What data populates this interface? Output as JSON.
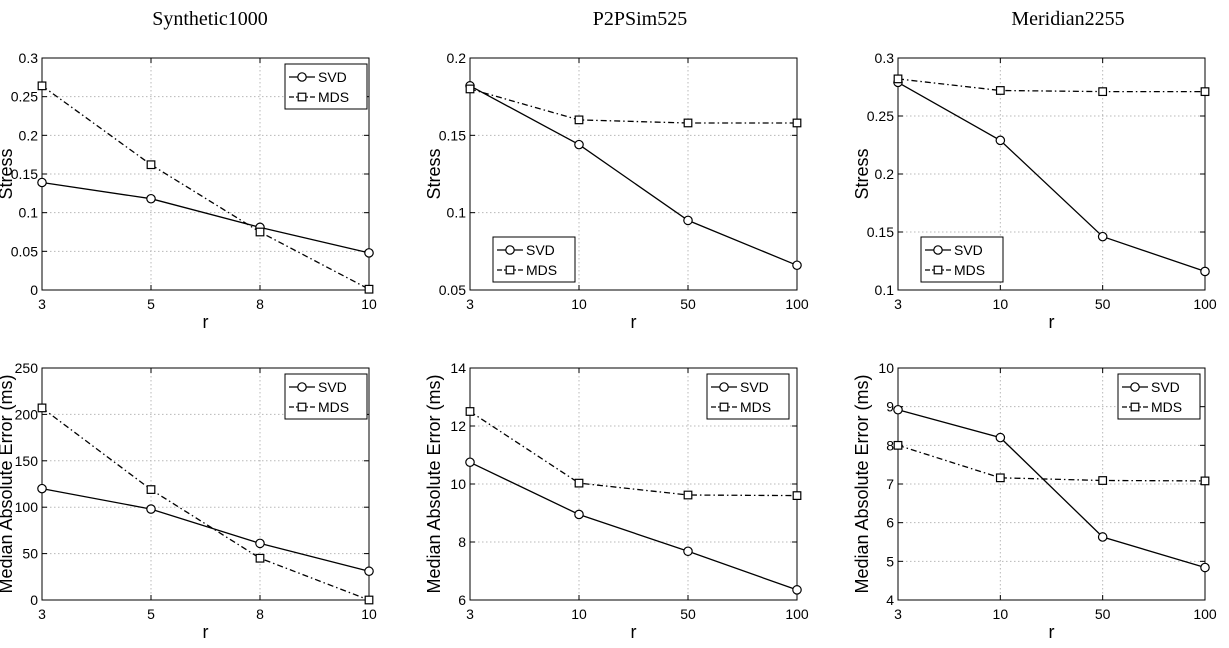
{
  "column_titles": [
    "Synthetic1000",
    "P2PSim525",
    "Meridian2255"
  ],
  "colors": {
    "line": "#000000",
    "grid": "#b8b8b8",
    "background": "#ffffff"
  },
  "chart_data": [
    {
      "type": "line",
      "title": "Synthetic1000",
      "xlabel": "r",
      "ylabel": "Stress",
      "x": [
        3,
        5,
        8,
        10
      ],
      "xticks": [
        "3",
        "5",
        "8",
        "10"
      ],
      "ylim": [
        0,
        0.3
      ],
      "yticks": [
        "0",
        "0.05",
        "0.1",
        "0.15",
        "0.2",
        "0.25",
        "0.3"
      ],
      "grid": true,
      "legend": "top-right",
      "series": [
        {
          "name": "SVD",
          "marker": "circle",
          "style": "solid",
          "values": [
            0.139,
            0.118,
            0.081,
            0.048
          ]
        },
        {
          "name": "MDS",
          "marker": "square",
          "style": "dashdot",
          "values": [
            0.264,
            0.162,
            0.075,
            0.001
          ]
        }
      ]
    },
    {
      "type": "line",
      "title": "P2PSim525",
      "xlabel": "r",
      "ylabel": "Stress",
      "x": [
        3,
        10,
        50,
        100
      ],
      "xticks": [
        "3",
        "10",
        "50",
        "100"
      ],
      "ylim": [
        0.05,
        0.2
      ],
      "yticks": [
        "0.05",
        "0.1",
        "0.15",
        "0.2"
      ],
      "grid": true,
      "legend": "bottom-left",
      "series": [
        {
          "name": "SVD",
          "marker": "circle",
          "style": "solid",
          "values": [
            0.182,
            0.144,
            0.095,
            0.066
          ]
        },
        {
          "name": "MDS",
          "marker": "square",
          "style": "dashdot",
          "values": [
            0.18,
            0.16,
            0.158,
            0.158
          ]
        }
      ]
    },
    {
      "type": "line",
      "title": "Meridian2255",
      "xlabel": "r",
      "ylabel": "Stress",
      "x": [
        3,
        10,
        50,
        100
      ],
      "xticks": [
        "3",
        "10",
        "50",
        "100"
      ],
      "ylim": [
        0.1,
        0.3
      ],
      "yticks": [
        "0.1",
        "0.15",
        "0.2",
        "0.25",
        "0.3"
      ],
      "grid": true,
      "legend": "bottom-left",
      "series": [
        {
          "name": "SVD",
          "marker": "circle",
          "style": "solid",
          "values": [
            0.279,
            0.229,
            0.146,
            0.116
          ]
        },
        {
          "name": "MDS",
          "marker": "square",
          "style": "dashdot",
          "values": [
            0.282,
            0.272,
            0.271,
            0.271
          ]
        }
      ]
    },
    {
      "type": "line",
      "title": "",
      "xlabel": "r",
      "ylabel": "Median Absolute Error (ms)",
      "x": [
        3,
        5,
        8,
        10
      ],
      "xticks": [
        "3",
        "5",
        "8",
        "10"
      ],
      "ylim": [
        0,
        250
      ],
      "yticks": [
        "0",
        "50",
        "100",
        "150",
        "200",
        "250"
      ],
      "grid": true,
      "legend": "top-right",
      "series": [
        {
          "name": "SVD",
          "marker": "circle",
          "style": "solid",
          "values": [
            120,
            98,
            61,
            31
          ]
        },
        {
          "name": "MDS",
          "marker": "square",
          "style": "dashdot",
          "values": [
            207,
            119,
            45,
            0
          ]
        }
      ]
    },
    {
      "type": "line",
      "title": "",
      "xlabel": "r",
      "ylabel": "Median Absolute Error (ms)",
      "x": [
        3,
        10,
        50,
        100
      ],
      "xticks": [
        "3",
        "10",
        "50",
        "100"
      ],
      "ylim": [
        6,
        14
      ],
      "yticks": [
        "6",
        "8",
        "10",
        "12",
        "14"
      ],
      "grid": true,
      "legend": "top-right",
      "series": [
        {
          "name": "SVD",
          "marker": "circle",
          "style": "solid",
          "values": [
            10.75,
            8.95,
            7.68,
            6.35
          ]
        },
        {
          "name": "MDS",
          "marker": "square",
          "style": "dashdot",
          "values": [
            12.5,
            10.03,
            9.62,
            9.6
          ]
        }
      ]
    },
    {
      "type": "line",
      "title": "",
      "xlabel": "r",
      "ylabel": "Median Absolute Error (ms)",
      "x": [
        3,
        10,
        50,
        100
      ],
      "xticks": [
        "3",
        "10",
        "50",
        "100"
      ],
      "ylim": [
        4,
        10
      ],
      "yticks": [
        "4",
        "5",
        "6",
        "7",
        "8",
        "9",
        "10"
      ],
      "grid": true,
      "legend": "top-right",
      "series": [
        {
          "name": "SVD",
          "marker": "circle",
          "style": "solid",
          "values": [
            8.92,
            8.2,
            5.63,
            4.84
          ]
        },
        {
          "name": "MDS",
          "marker": "square",
          "style": "dashdot",
          "values": [
            8.0,
            7.16,
            7.09,
            7.08
          ]
        }
      ]
    }
  ]
}
